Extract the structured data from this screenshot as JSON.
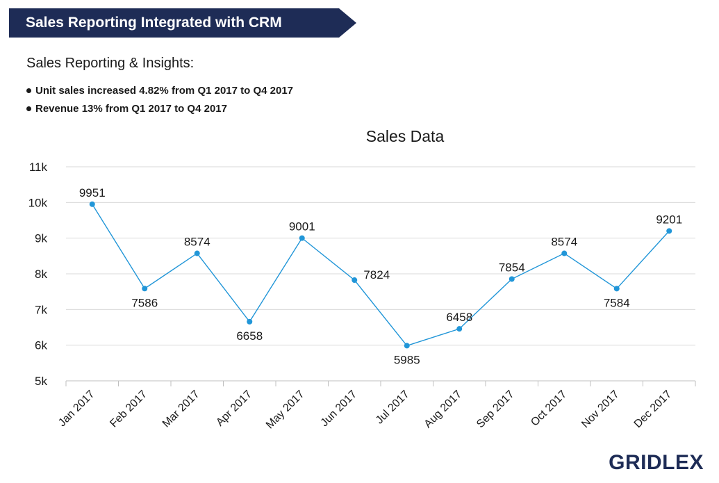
{
  "header": {
    "banner_title": "Sales Reporting Integrated with CRM",
    "insights_title": "Sales Reporting & Insights:",
    "bullets": [
      "Unit sales increased 4.82% from Q1 2017 to Q4 2017",
      "Revenue 13% from Q1 2017 to Q4 2017"
    ]
  },
  "colors": {
    "banner": "#1e2c56",
    "line": "#2196d8",
    "grid": "#d9d9d9",
    "logo": "#1e2c56"
  },
  "chart_data": {
    "type": "line",
    "title": "Sales Data",
    "xlabel": "",
    "ylabel": "",
    "categories": [
      "Jan 2017",
      "Feb 2017",
      "Mar  2017",
      "Apr 2017",
      "May 2017",
      "Jun 2017",
      "Jul  2017",
      "Aug 2017",
      "Sep 2017",
      "Oct 2017",
      "Nov 2017",
      "Dec 2017"
    ],
    "series": [
      {
        "values": [
          9951,
          7586,
          8574,
          6658,
          9001,
          7824,
          5985,
          6458,
          7854,
          8574,
          7584,
          9201
        ]
      }
    ],
    "data_labels": [
      "9951",
      "7586",
      "8574",
      "6658",
      "9001",
      "7824",
      "5985",
      "6458",
      "7854",
      "8574",
      "7584",
      "9201"
    ],
    "ylim": [
      5000,
      11000
    ],
    "yticks": [
      5000,
      6000,
      7000,
      8000,
      9000,
      10000,
      11000
    ],
    "ytick_labels": [
      "5k",
      "6k",
      "7k",
      "8k",
      "9k",
      "10k",
      "11k"
    ],
    "grid": true,
    "legend": "none"
  },
  "logo": {
    "text": "GRIDLEX"
  }
}
